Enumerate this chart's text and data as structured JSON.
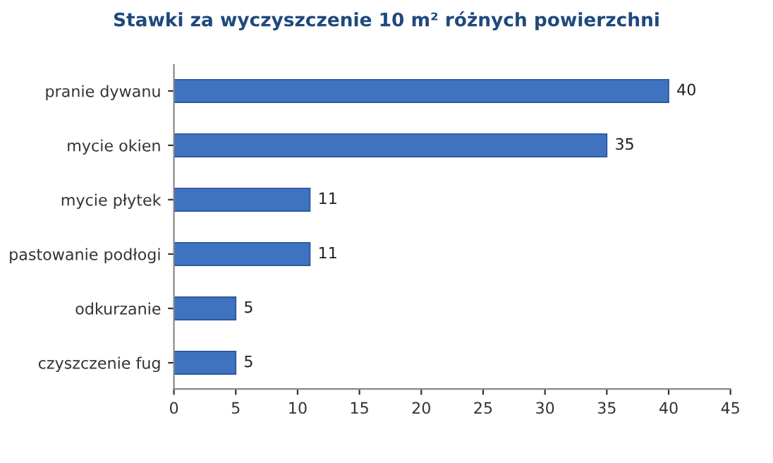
{
  "chart_data": {
    "type": "bar",
    "orientation": "horizontal",
    "title": "Stawki za wyczyszczenie 10 m² różnych powierzchni",
    "categories": [
      "pranie dywanu",
      "mycie okien",
      "mycie płytek",
      "pastowanie podłogi",
      "odkurzanie",
      "czyszczenie fug"
    ],
    "values": [
      40,
      35,
      11,
      11,
      5,
      5
    ],
    "color": "#3f73c0",
    "xlim": [
      0,
      45
    ],
    "xticks": [
      0,
      5,
      10,
      15,
      20,
      25,
      30,
      35,
      40,
      45
    ],
    "data_labels": true,
    "grid": false,
    "legend": false
  }
}
